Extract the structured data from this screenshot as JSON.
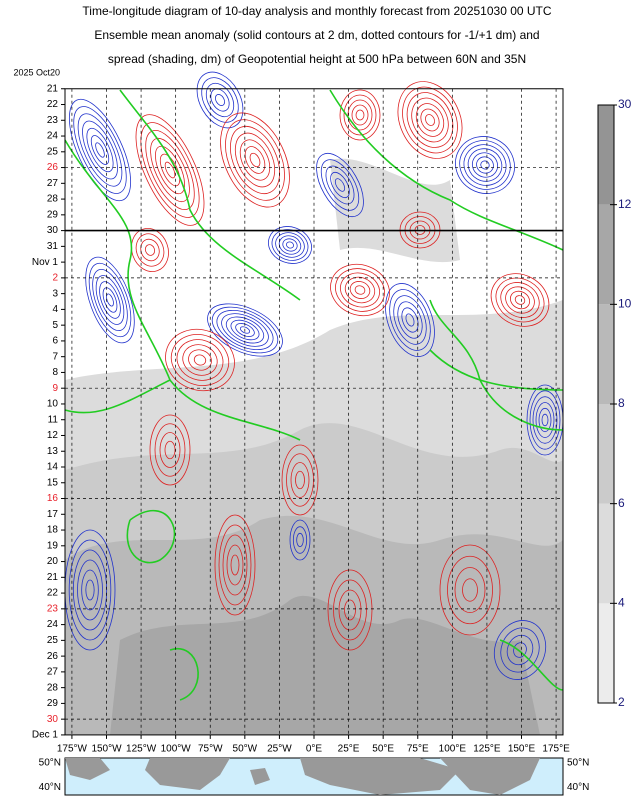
{
  "chart_data": {
    "type": "hovmoller",
    "title_lines": [
      "Time-longitude diagram of 10-day analysis and monthly forecast from 20251030 00 UTC",
      "Ensemble mean anomaly (solid contours at 2 dm, dotted contours for -1/+1 dm) and",
      "spread (shading, dm) of Geopotential height at 500 hPa between 60N and 35N"
    ],
    "categories": [
      "2025 Oct20",
      "21",
      "22",
      "23",
      "24",
      "25",
      "26",
      "27",
      "28",
      "29",
      "30",
      "31",
      "Nov 1",
      "2",
      "3",
      "4",
      "5",
      "6",
      "7",
      "8",
      "9",
      "10",
      "11",
      "12",
      "13",
      "14",
      "15",
      "16",
      "17",
      "18",
      "19",
      "20",
      "21",
      "22",
      "23",
      "24",
      "25",
      "26",
      "27",
      "28",
      "29",
      "30",
      "Dec 1"
    ],
    "category_colors": [
      "#000",
      "#000",
      "#000",
      "#000",
      "#000",
      "#000",
      "#e8202a",
      "#000",
      "#000",
      "#000",
      "#000",
      "#000",
      "#000",
      "#e8202a",
      "#000",
      "#000",
      "#000",
      "#000",
      "#000",
      "#000",
      "#e8202a",
      "#000",
      "#000",
      "#000",
      "#000",
      "#000",
      "#000",
      "#e8202a",
      "#000",
      "#000",
      "#000",
      "#000",
      "#000",
      "#000",
      "#e8202a",
      "#000",
      "#000",
      "#000",
      "#000",
      "#000",
      "#000",
      "#e8202a",
      "#000"
    ],
    "xlim": [
      -180,
      180
    ],
    "xticks": [
      {
        "value": -175,
        "label": "175°W"
      },
      {
        "value": -150,
        "label": "150°W"
      },
      {
        "value": -125,
        "label": "125°W"
      },
      {
        "value": -100,
        "label": "100°W"
      },
      {
        "value": -75,
        "label": "75°W"
      },
      {
        "value": -50,
        "label": "50°W"
      },
      {
        "value": -25,
        "label": "25°W"
      },
      {
        "value": 0,
        "label": "0°E"
      },
      {
        "value": 25,
        "label": "25°E"
      },
      {
        "value": 50,
        "label": "50°E"
      },
      {
        "value": 75,
        "label": "75°E"
      },
      {
        "value": 100,
        "label": "100°E"
      },
      {
        "value": 125,
        "label": "125°E"
      },
      {
        "value": 150,
        "label": "150°E"
      },
      {
        "value": 175,
        "label": "175°E"
      }
    ],
    "colorbar": {
      "ticks": [
        2,
        4,
        6,
        8,
        10,
        12,
        30
      ],
      "colors": [
        "#ececec",
        "#dcdcdc",
        "#cbcbcb",
        "#b9b9b9",
        "#a7a7a7",
        "#949494"
      ]
    },
    "map_labels": [
      {
        "value": 50,
        "label": "50°N"
      },
      {
        "value": 40,
        "label": "40°N"
      }
    ]
  }
}
